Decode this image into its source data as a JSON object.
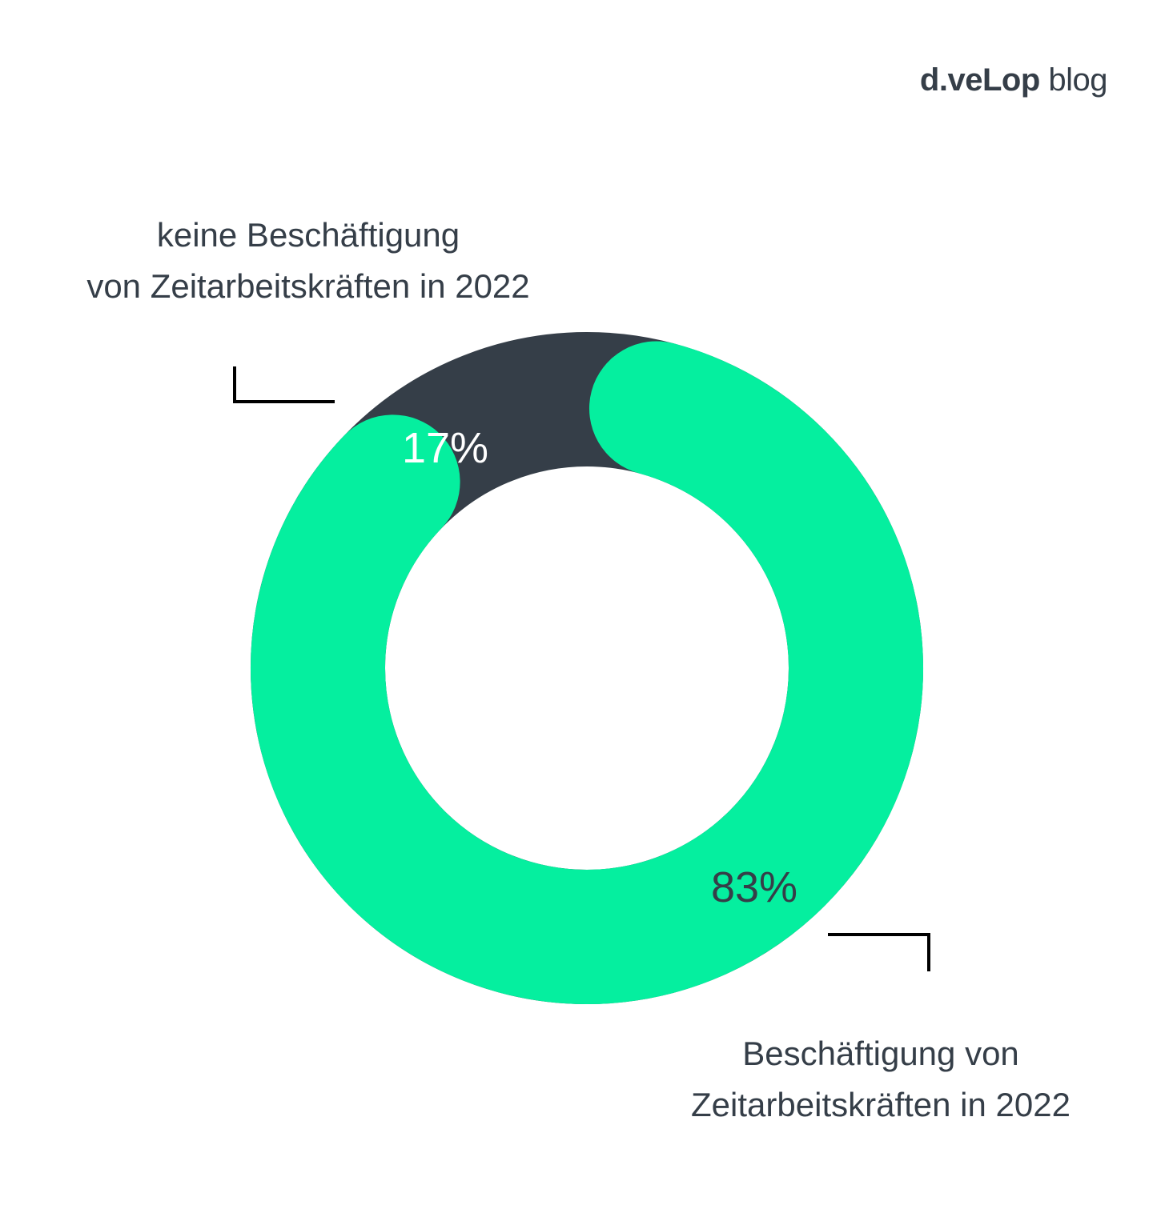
{
  "brand": {
    "name": "d.veLop",
    "suffix": "blog"
  },
  "colors": {
    "primary": "#05ef9f",
    "secondary": "#353e48",
    "label_text": "#353e48",
    "pct_light": "#ffffff",
    "pct_dark": "#353e48",
    "connector": "#000000"
  },
  "chart_data": {
    "type": "pie",
    "style": "donut",
    "categories": [
      "Beschäftigung von Zeitarbeitskräften in 2022",
      "keine Beschäftigung von Zeitarbeitskräften in 2022"
    ],
    "values": [
      83,
      17
    ],
    "unit": "%",
    "value_labels": [
      "83%",
      "17%"
    ],
    "legend": "none"
  },
  "labels": {
    "left": {
      "line1": "keine Beschäftigung",
      "line2": "von Zeitarbeitskräften in 2022"
    },
    "right": {
      "line1": "Beschäftigung von",
      "line2": "Zeitarbeitskräften in 2022"
    }
  }
}
